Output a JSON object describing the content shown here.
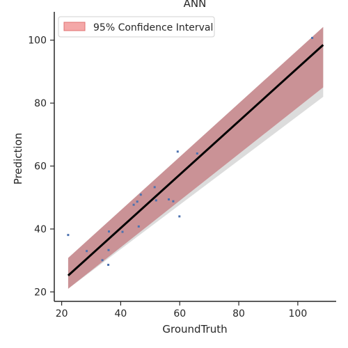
{
  "chart_data": {
    "type": "scatter",
    "title": "ANN",
    "xlabel": "GroundTruth",
    "ylabel": "Prediction",
    "xlim": [
      17.5,
      113
    ],
    "ylim": [
      17,
      109
    ],
    "xticks": [
      20,
      40,
      60,
      80,
      100
    ],
    "yticks": [
      20,
      40,
      60,
      80,
      100
    ],
    "grid": false,
    "legend": {
      "position": "top-left",
      "entries": [
        "95% Confidence Interval"
      ]
    },
    "colors": {
      "points": "#4c72b0",
      "fit_line": "#000000",
      "ci_fill": "#c88a8e",
      "outer_band": "#dcdcdc",
      "legend_patch": "#f4a8a8"
    },
    "series": [
      {
        "type": "scatter",
        "x": [
          22.2,
          28.5,
          33.8,
          35.8,
          35.9,
          36.0,
          40.6,
          44.4,
          45.6,
          46.1,
          46.8,
          51.5,
          52.0,
          56.3,
          57.8,
          59.3,
          59.9,
          65.9,
          104.9
        ],
        "y": [
          38.1,
          33.0,
          30.1,
          28.6,
          33.3,
          39.2,
          39.1,
          47.7,
          48.7,
          40.8,
          50.9,
          53.3,
          49.1,
          49.4,
          48.8,
          64.6,
          44.0,
          64.0,
          100.7
        ]
      },
      {
        "type": "regression",
        "x": [
          22.2,
          108.6
        ],
        "y": [
          25.2,
          98.5
        ],
        "ci95_lower": [
          21.0,
          85.0
        ],
        "ci95_upper": [
          30.8,
          104.2
        ],
        "outer_lower": [
          21.0,
          82.0
        ],
        "outer_upper": [
          30.8,
          104.2
        ]
      }
    ]
  }
}
